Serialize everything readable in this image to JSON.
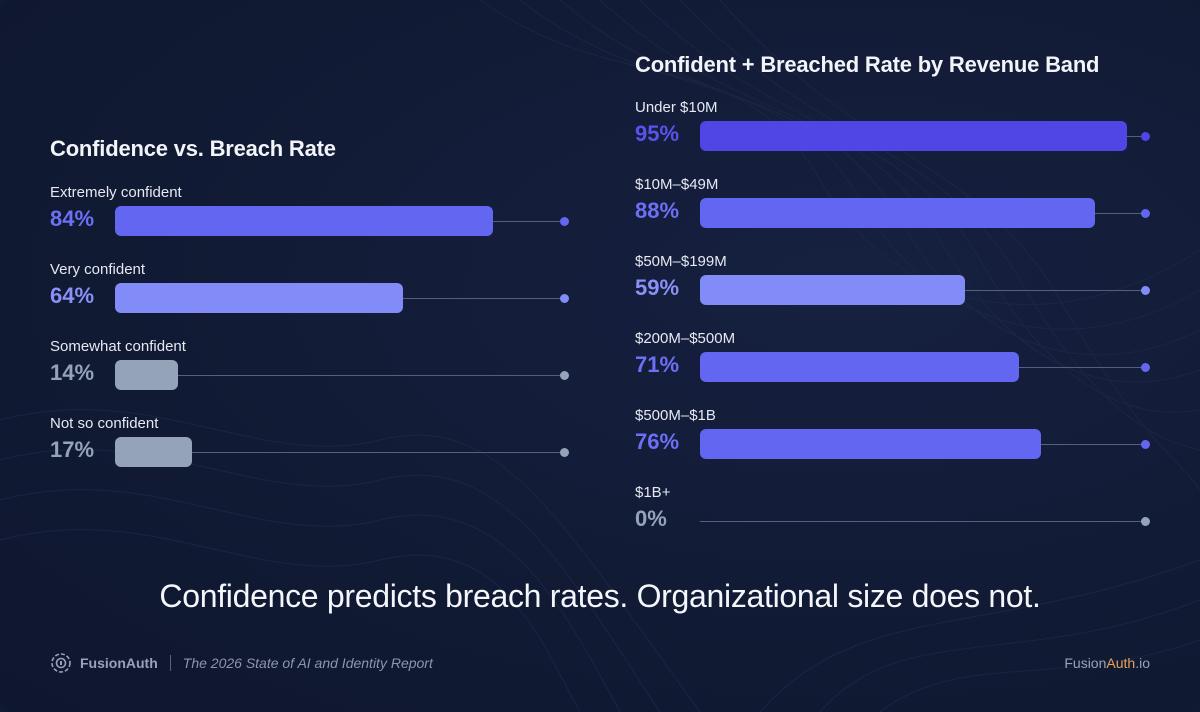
{
  "headline": "Confidence predicts breach rates. Organizational size does not.",
  "footer": {
    "brand": "FusionAuth",
    "report": "The 2026 State of AI and Identity Report",
    "site_part1": "Fusion",
    "site_part2": "Auth",
    "site_part3": ".io"
  },
  "colors": {
    "high": "#6366f1",
    "medium": "#818cf8",
    "low": "#94a3b8",
    "strongest": "#4f46e5",
    "track": "#56607a",
    "footer_accent": "#e8a25a"
  },
  "chart_data": [
    {
      "type": "bar",
      "orientation": "horizontal",
      "title": "Confidence vs. Breach Rate",
      "xlim": [
        0,
        100
      ],
      "unit": "%",
      "grid": false,
      "categories": [
        "Extremely confident",
        "Very confident",
        "Somewhat confident",
        "Not so confident"
      ],
      "values": [
        84,
        64,
        14,
        17
      ],
      "value_labels": [
        "84%",
        "64%",
        "14%",
        "17%"
      ],
      "bar_colors": [
        "#6366f1",
        "#818cf8",
        "#94a3b8",
        "#94a3b8"
      ],
      "label_colors": [
        "#6d6ff5",
        "#8a90f5",
        "#94a3b8",
        "#94a3b8"
      ]
    },
    {
      "type": "bar",
      "orientation": "horizontal",
      "title": "Confident + Breached Rate by Revenue Band",
      "xlim": [
        0,
        100
      ],
      "unit": "%",
      "grid": false,
      "categories": [
        "Under $10M",
        "$10M–$49M",
        "$50M–$199M",
        "$200M–$500M",
        "$500M–$1B",
        "$1B+"
      ],
      "values": [
        95,
        88,
        59,
        71,
        76,
        0
      ],
      "value_labels": [
        "95%",
        "88%",
        "59%",
        "71%",
        "76%",
        "0%"
      ],
      "bar_colors": [
        "#4f46e5",
        "#6366f1",
        "#818cf8",
        "#6366f1",
        "#6366f1",
        "#94a3b8"
      ],
      "label_colors": [
        "#5a52ef",
        "#6d6ff5",
        "#8a90f5",
        "#6d6ff5",
        "#6d6ff5",
        "#94a3b8"
      ]
    }
  ]
}
